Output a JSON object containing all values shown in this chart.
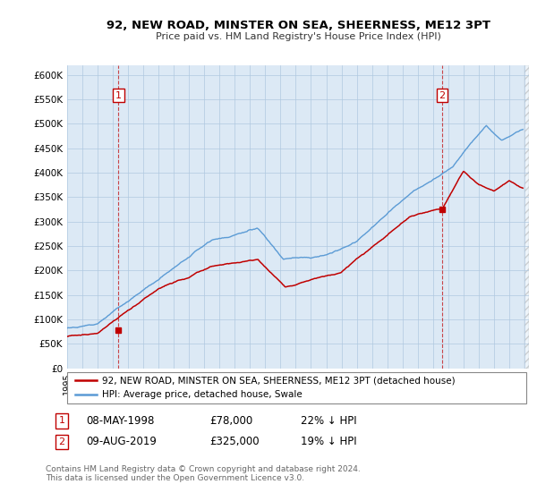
{
  "title": "92, NEW ROAD, MINSTER ON SEA, SHEERNESS, ME12 3PT",
  "subtitle": "Price paid vs. HM Land Registry's House Price Index (HPI)",
  "ylim": [
    0,
    620000
  ],
  "yticks": [
    0,
    50000,
    100000,
    150000,
    200000,
    250000,
    300000,
    350000,
    400000,
    450000,
    500000,
    550000,
    600000
  ],
  "ytick_labels": [
    "£0",
    "£50K",
    "£100K",
    "£150K",
    "£200K",
    "£250K",
    "£300K",
    "£350K",
    "£400K",
    "£450K",
    "£500K",
    "£550K",
    "£600K"
  ],
  "hpi_color": "#5b9bd5",
  "price_color": "#c00000",
  "background_color": "#dce9f5",
  "grid_color": "#b0c8e0",
  "legend_label_price": "92, NEW ROAD, MINSTER ON SEA, SHEERNESS, ME12 3PT (detached house)",
  "legend_label_hpi": "HPI: Average price, detached house, Swale",
  "annotation1_label": "1",
  "annotation1_date": "08-MAY-1998",
  "annotation1_price": "£78,000",
  "annotation1_pct": "22% ↓ HPI",
  "annotation2_label": "2",
  "annotation2_date": "09-AUG-2019",
  "annotation2_price": "£325,000",
  "annotation2_pct": "19% ↓ HPI",
  "footnote": "Contains HM Land Registry data © Crown copyright and database right 2024.\nThis data is licensed under the Open Government Licence v3.0.",
  "sale1_x": 1998.37,
  "sale1_y": 78000,
  "sale2_x": 2019.6,
  "sale2_y": 325000,
  "xmin": 1995.0,
  "xmax": 2025.3,
  "hpi_noise_seed": 17,
  "price_noise_seed": 5
}
